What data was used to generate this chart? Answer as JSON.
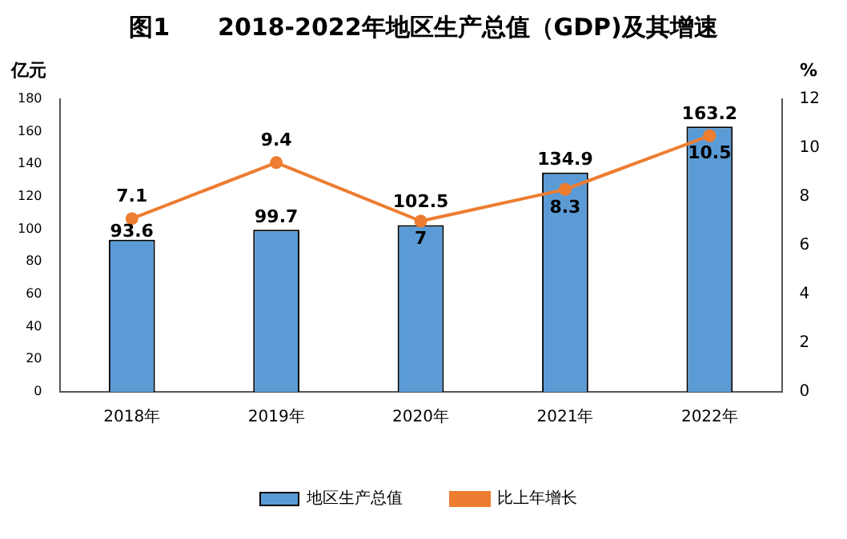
{
  "chart_data": {
    "type": "bar",
    "title": "图1　　2018-2022年地区生产总值（GDP)及其增速",
    "ylabel": "亿元",
    "y2label": "%",
    "categories": [
      "2018年",
      "2019年",
      "2020年",
      "2021年",
      "2022年"
    ],
    "series": [
      {
        "name": "地区生产总值",
        "color": "#5b9bd5",
        "values": [
          93.6,
          99.7,
          102.5,
          134.9,
          163.2
        ]
      },
      {
        "name": "比上年增长",
        "type": "line",
        "axis": "y2",
        "color": "#ed7d31",
        "values": [
          7.1,
          9.4,
          7,
          8.3,
          10.5
        ]
      }
    ],
    "ylim": [
      0,
      180
    ],
    "yticks": [
      0,
      20,
      40,
      60,
      80,
      100,
      120,
      140,
      160,
      180
    ],
    "y2lim": [
      0,
      12
    ],
    "y2ticks": [
      0,
      2,
      4,
      6,
      8,
      10,
      12
    ],
    "data_labels": true,
    "legend": "bottom",
    "marker": "circle",
    "line_style": "solid",
    "grid": false
  }
}
